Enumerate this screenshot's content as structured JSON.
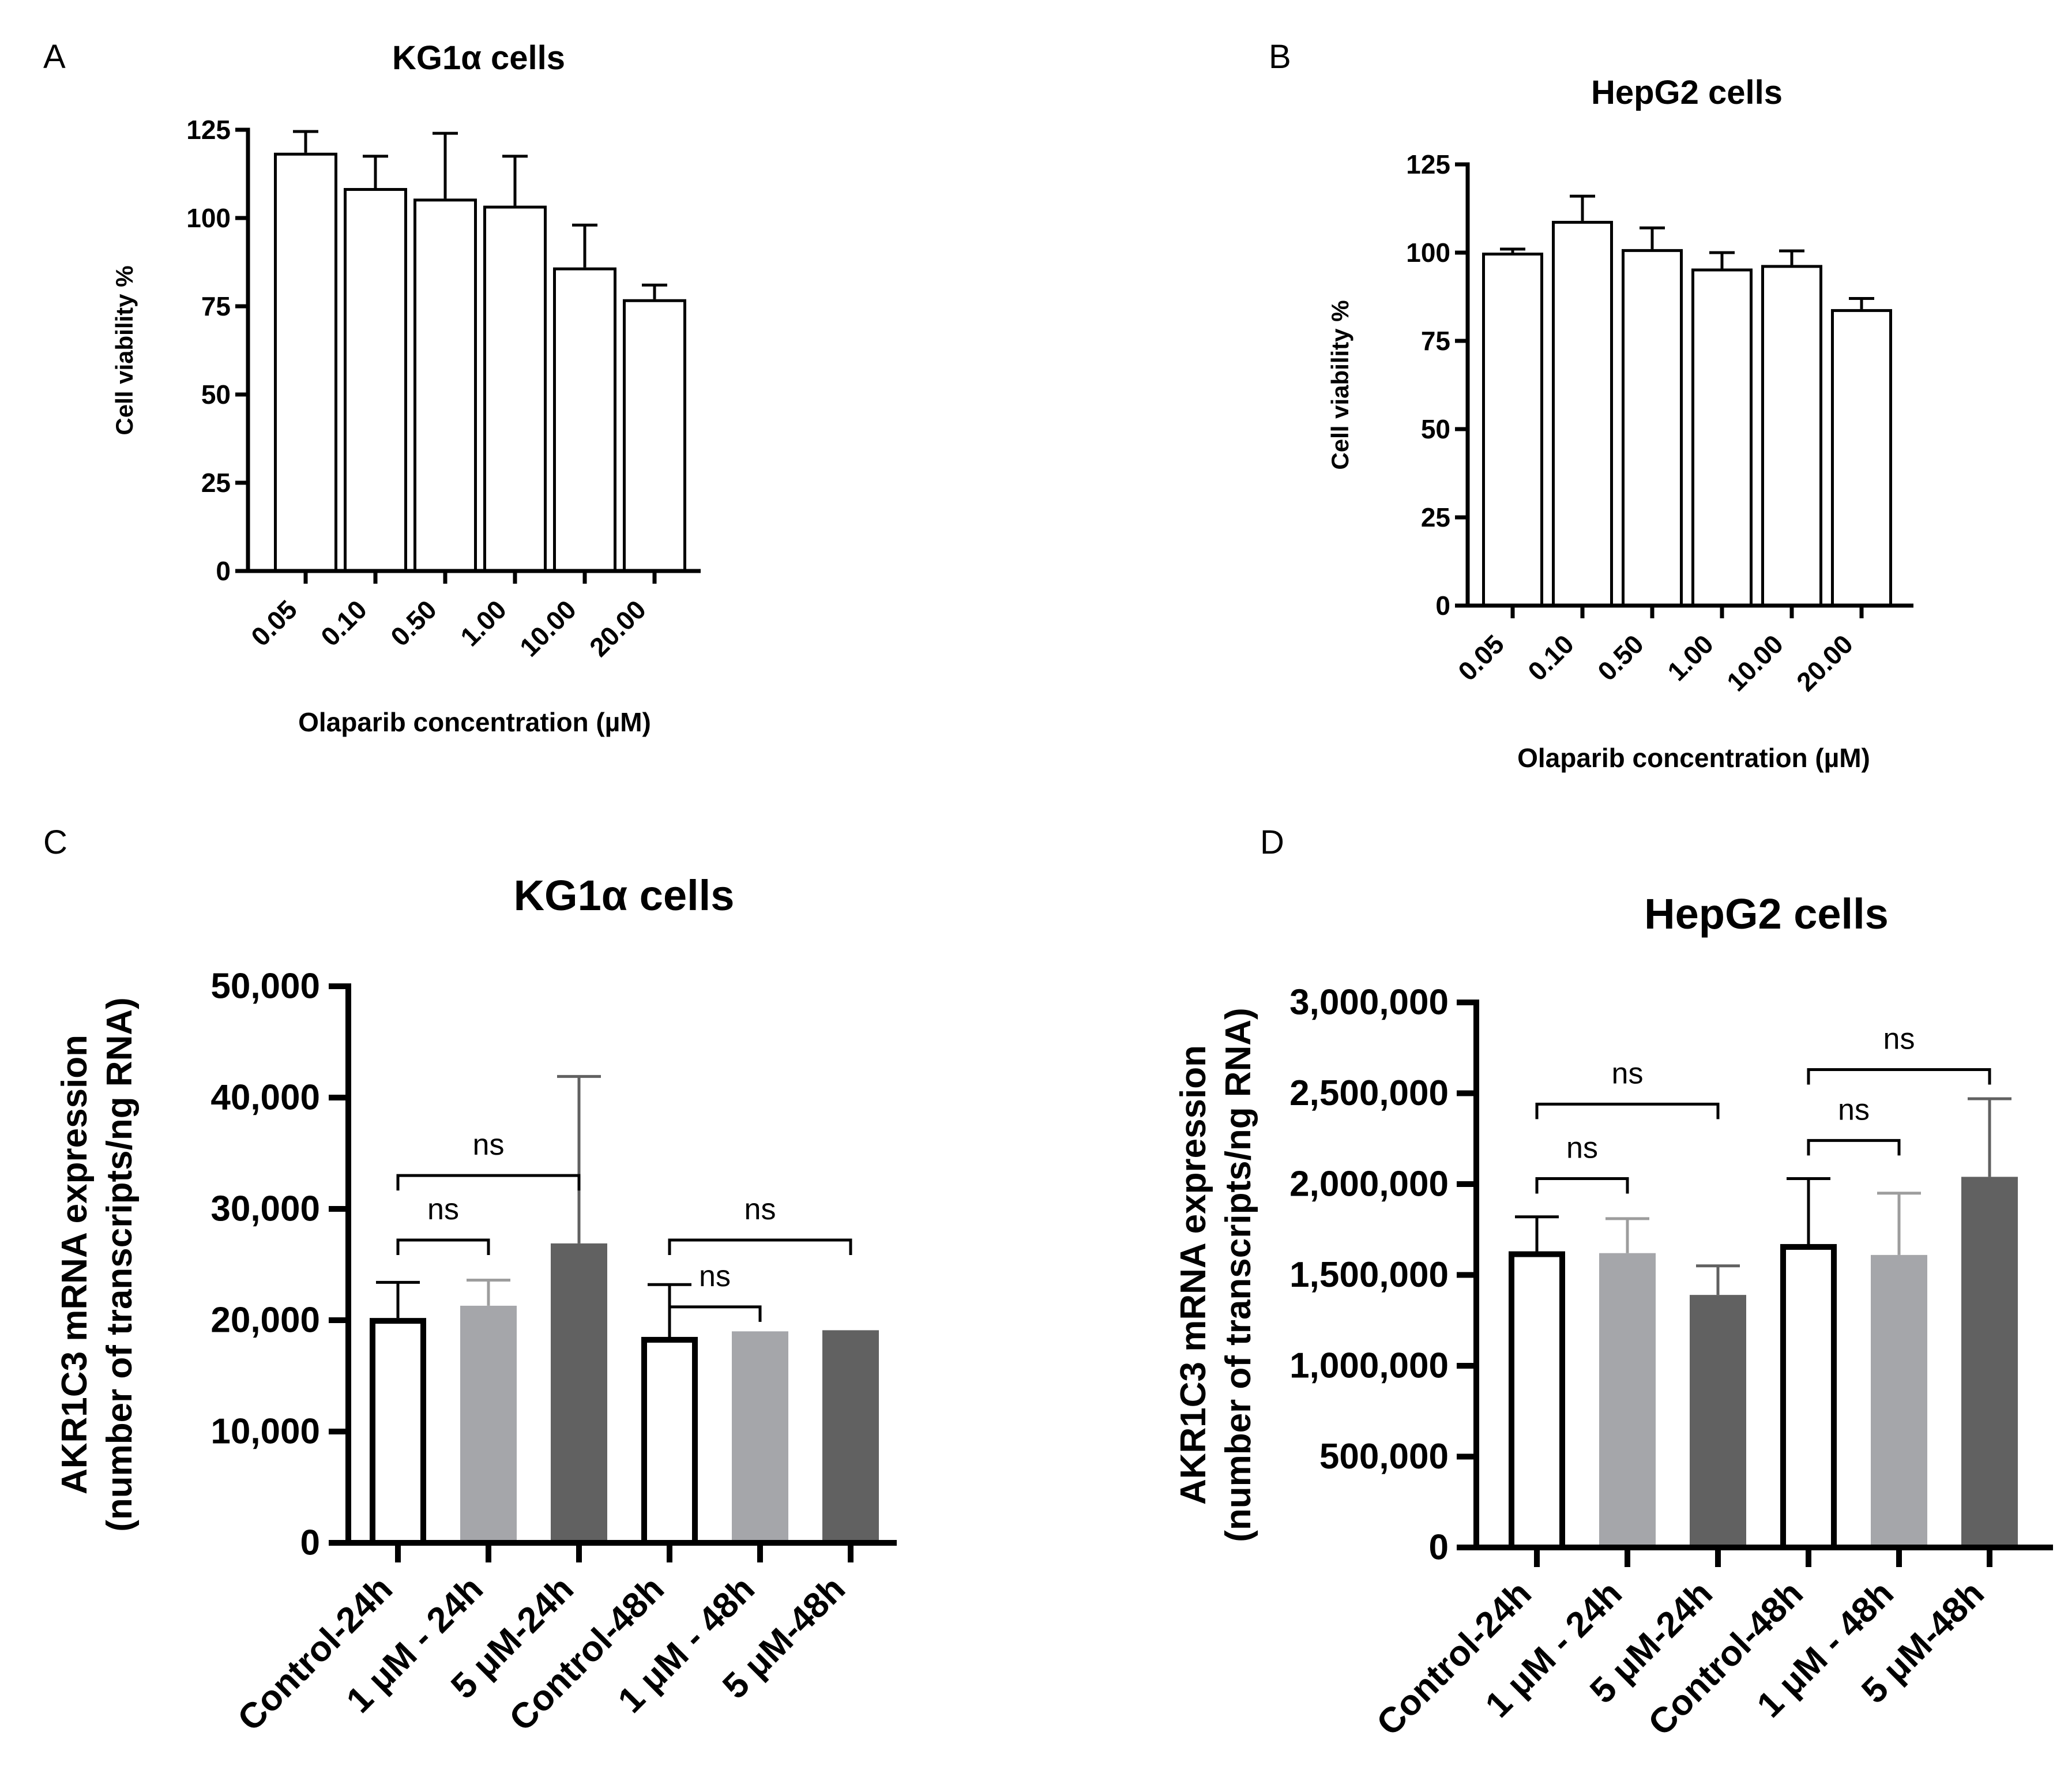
{
  "chart_data": [
    {
      "panel": "A",
      "type": "bar",
      "title": "KG1α cells",
      "xlabel": "Olaparib concentration (µM)",
      "ylabel": "Cell viability %",
      "categories": [
        "0.05",
        "0.10",
        "0.50",
        "1.00",
        "10.00",
        "20.00"
      ],
      "values": [
        118.5,
        108.5,
        105.5,
        103.5,
        86,
        77
      ],
      "errors": [
        6,
        9,
        18.5,
        14,
        12,
        4
      ],
      "bar_colors": [
        "#ffffff",
        "#ffffff",
        "#ffffff",
        "#ffffff",
        "#ffffff",
        "#ffffff"
      ],
      "ylim": [
        0,
        125
      ],
      "yticks": [
        0,
        25,
        50,
        75,
        100,
        125
      ],
      "ytick_labels": [
        "0",
        "25",
        "50",
        "75",
        "100",
        "125"
      ],
      "comparisons": []
    },
    {
      "panel": "B",
      "type": "bar",
      "title": "HepG2 cells",
      "xlabel": "Olaparib concentration (µM)",
      "ylabel": "Cell viability %",
      "categories": [
        "0.05",
        "0.10",
        "0.50",
        "1.00",
        "10.00",
        "20.00"
      ],
      "values": [
        100,
        109,
        101,
        95.5,
        96.5,
        84
      ],
      "errors": [
        1,
        7,
        6,
        4.5,
        4,
        3
      ],
      "bar_colors": [
        "#ffffff",
        "#ffffff",
        "#ffffff",
        "#ffffff",
        "#ffffff",
        "#ffffff"
      ],
      "ylim": [
        0,
        125
      ],
      "yticks": [
        0,
        25,
        50,
        75,
        100,
        125
      ],
      "ytick_labels": [
        "0",
        "25",
        "50",
        "75",
        "100",
        "125"
      ],
      "comparisons": []
    },
    {
      "panel": "C",
      "type": "bar",
      "title": "KG1α cells",
      "xlabel": "",
      "ylabel": [
        "AKR1C3 mRNA expression",
        "(number of transcripts/ng RNA)"
      ],
      "categories": [
        "Control-24h",
        "1 μM - 24h",
        "5 μM-24h",
        "Control-48h",
        "1 μM - 48h",
        "5 μM-48h"
      ],
      "values": [
        20200,
        21300,
        26900,
        18500,
        19000,
        19100
      ],
      "errors": [
        3200,
        2300,
        15000,
        4700,
        0,
        0
      ],
      "bar_colors": [
        "#ffffff",
        "#a5a6aa",
        "#616161",
        "#ffffff",
        "#a5a6aa",
        "#616161"
      ],
      "ylim": [
        0,
        50000
      ],
      "yticks": [
        0,
        10000,
        20000,
        30000,
        40000,
        50000
      ],
      "ytick_labels": [
        "0",
        "10,000",
        "20,000",
        "30,000",
        "40,000",
        "50,000"
      ],
      "comparisons": [
        {
          "from": 0,
          "to": 1,
          "y": 27200,
          "label": "ns"
        },
        {
          "from": 0,
          "to": 2,
          "y": 33000,
          "label": "ns"
        },
        {
          "from": 3,
          "to": 4,
          "y": 21200,
          "label": "ns"
        },
        {
          "from": 3,
          "to": 5,
          "y": 27200,
          "label": "ns"
        }
      ]
    },
    {
      "panel": "D",
      "type": "bar",
      "title": "HepG2 cells",
      "xlabel": "",
      "ylabel": [
        "AKR1C3 mRNA expression",
        "(number of transcripts/ng RNA)"
      ],
      "categories": [
        "Control-24h",
        "1 μM - 24h",
        "5 μM-24h",
        "Control-48h",
        "1 μM - 48h",
        "5 μM-48h"
      ],
      "values": [
        1630000,
        1620000,
        1390000,
        1670000,
        1610000,
        2040000
      ],
      "errors": [
        190000,
        190000,
        160000,
        360000,
        340000,
        430000
      ],
      "bar_colors": [
        "#ffffff",
        "#a5a6aa",
        "#616161",
        "#ffffff",
        "#a5a6aa",
        "#616161"
      ],
      "ylim": [
        0,
        3000000
      ],
      "yticks": [
        0,
        500000,
        1000000,
        1500000,
        2000000,
        2500000,
        3000000
      ],
      "ytick_labels": [
        "0",
        "500,000",
        "1,000,000",
        "1,500,000",
        "2,000,000",
        "2,500,000",
        "3,000,000"
      ],
      "comparisons": [
        {
          "from": 0,
          "to": 1,
          "y": 2030000,
          "label": "ns"
        },
        {
          "from": 0,
          "to": 2,
          "y": 2440000,
          "label": "ns"
        },
        {
          "from": 3,
          "to": 4,
          "y": 2240000,
          "label": "ns"
        },
        {
          "from": 3,
          "to": 5,
          "y": 2630000,
          "label": "ns"
        }
      ]
    }
  ]
}
